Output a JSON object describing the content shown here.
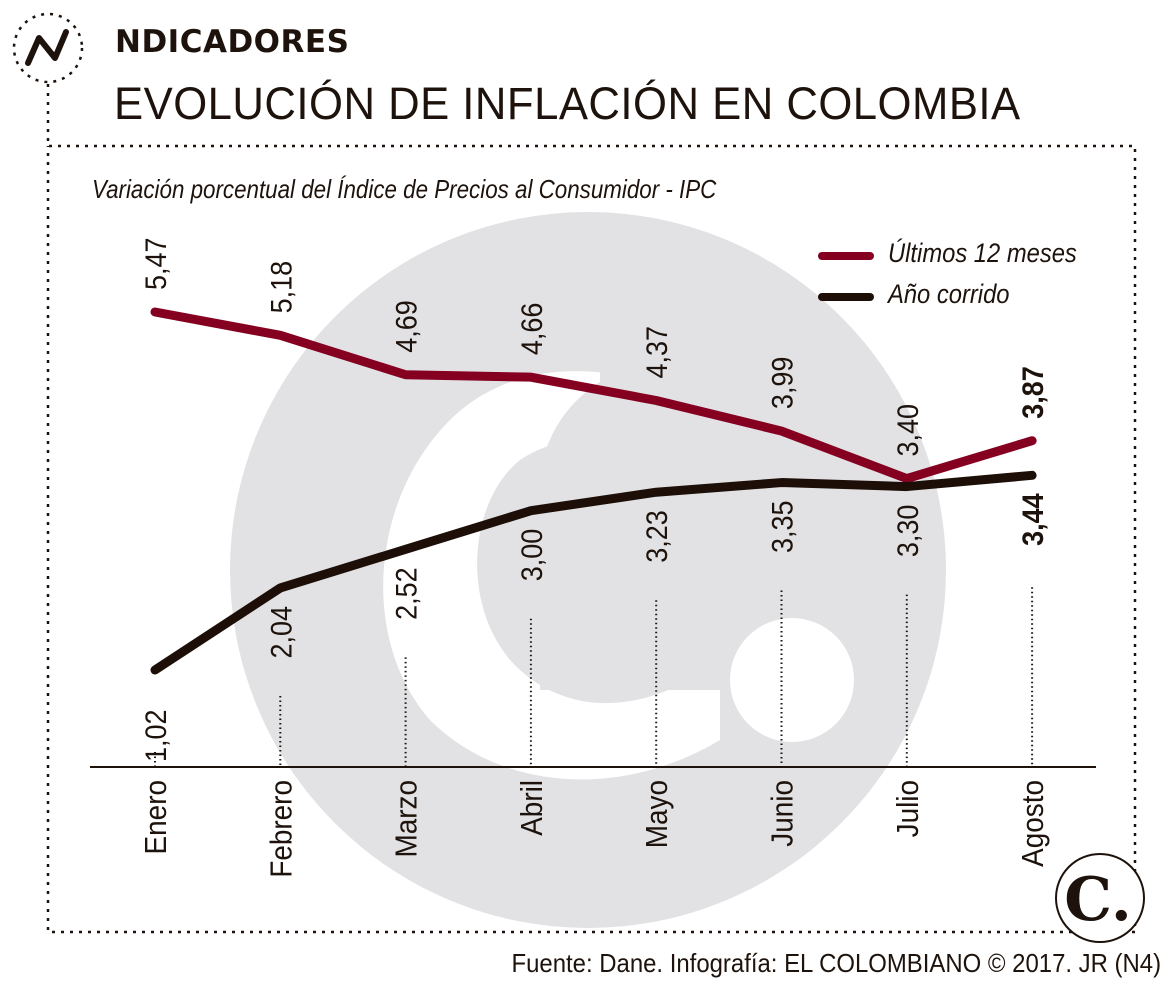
{
  "header": {
    "kicker": "NDICADORES",
    "title": "EVOLUCIÓN DE INFLACIÓN EN COLOMBIA",
    "icon": "trend-line-icon"
  },
  "footer": {
    "source": "Fuente: Dane. Infografía: EL COLOMBIANO © 2017. JR (N4)",
    "logo_icon": "el-colombiano-logo-icon",
    "logo_text": "C."
  },
  "colors": {
    "series_12m": "#850020",
    "series_ytd": "#1d0f08",
    "watermark": "#e2e2e5",
    "text": "#1d130c"
  },
  "chart_data": {
    "type": "line",
    "title": "EVOLUCIÓN DE INFLACIÓN EN COLOMBIA",
    "subtitle": "Variación porcentual del Índice  de Precios al Consumidor - IPC",
    "xlabel": "",
    "ylabel": "",
    "ylim": [
      0,
      6
    ],
    "grid": false,
    "legend_position": "top-right",
    "categories": [
      "Enero",
      "Febrero",
      "Marzo",
      "Abril",
      "Mayo",
      "Junio",
      "Julio",
      "Agosto"
    ],
    "series": [
      {
        "name": "Últimos 12 meses",
        "values": [
          5.47,
          5.18,
          4.69,
          4.66,
          4.37,
          3.99,
          3.4,
          3.87
        ],
        "labels": [
          "5,47",
          "5,18",
          "4,69",
          "4,66",
          "4,37",
          "3,99",
          "3,40",
          "3,87"
        ]
      },
      {
        "name": "Año corrido",
        "values": [
          1.02,
          2.04,
          2.52,
          3.0,
          3.23,
          3.35,
          3.3,
          3.44
        ],
        "labels": [
          "1,02",
          "2,04",
          "2,52",
          "3,00",
          "3,23",
          "3,35",
          "3,30",
          "3,44"
        ]
      }
    ]
  }
}
